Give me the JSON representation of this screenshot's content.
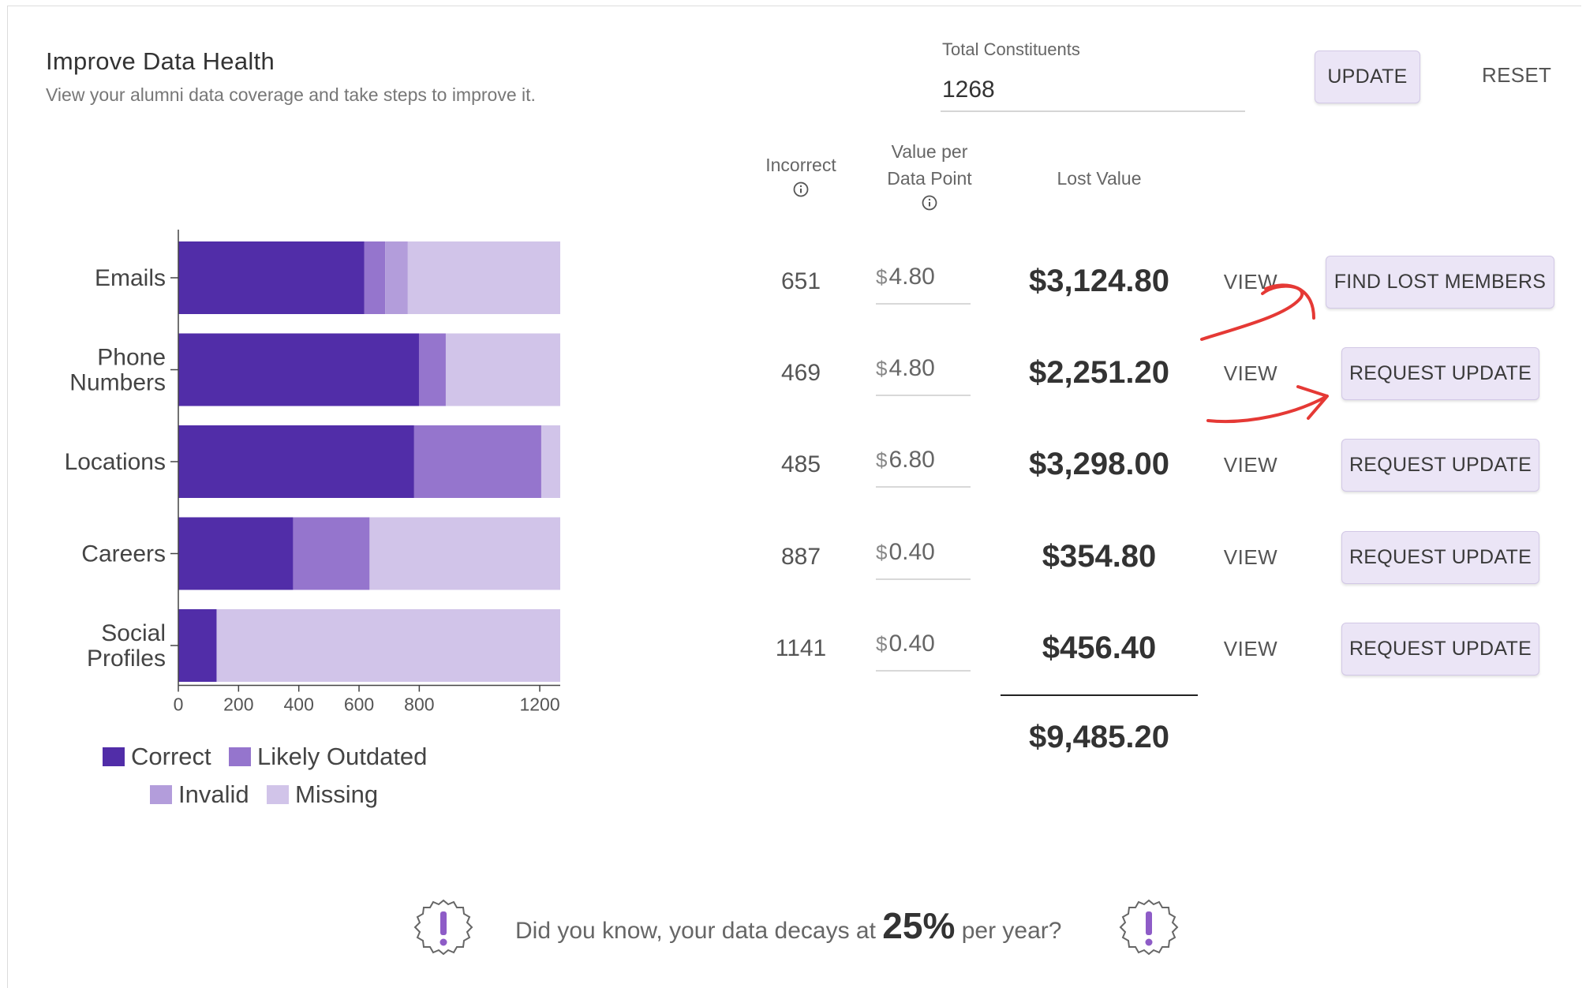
{
  "header": {
    "title": "Improve Data Health",
    "subtitle": "View your alumni data coverage and take steps to improve it."
  },
  "constituents": {
    "label": "Total Constituents",
    "value": "1268",
    "update_label": "UPDATE",
    "reset_label": "RESET"
  },
  "columns": {
    "incorrect": "Incorrect",
    "value_per_line1": "Value per",
    "value_per_line2": "Data Point",
    "lost_value": "Lost Value"
  },
  "rows": [
    {
      "incorrect": "651",
      "currency": "$",
      "value": "4.80",
      "lost": "$3,124.80",
      "view": "VIEW",
      "action": "FIND LOST MEMBERS"
    },
    {
      "incorrect": "469",
      "currency": "$",
      "value": "4.80",
      "lost": "$2,251.20",
      "view": "VIEW",
      "action": "REQUEST UPDATE"
    },
    {
      "incorrect": "485",
      "currency": "$",
      "value": "6.80",
      "lost": "$3,298.00",
      "view": "VIEW",
      "action": "REQUEST UPDATE"
    },
    {
      "incorrect": "887",
      "currency": "$",
      "value": "0.40",
      "lost": "$354.80",
      "view": "VIEW",
      "action": "REQUEST UPDATE"
    },
    {
      "incorrect": "1141",
      "currency": "$",
      "value": "0.40",
      "lost": "$456.40",
      "view": "VIEW",
      "action": "REQUEST UPDATE"
    }
  ],
  "total": "$9,485.20",
  "fact": {
    "prefix": "Did you know, your data decays at",
    "percent": "25%",
    "suffix": "per year?"
  },
  "colors": {
    "correct": "#512da8",
    "likely_outdated": "#9575cd",
    "invalid": "#b39ddb",
    "missing": "#d1c4e9",
    "annotation": "#e53935"
  },
  "chart_data": {
    "type": "bar",
    "orientation": "horizontal",
    "stacked": true,
    "categories": [
      [
        "Emails"
      ],
      [
        "Phone",
        "Numbers"
      ],
      [
        "Locations"
      ],
      [
        "Careers"
      ],
      [
        "Social",
        "Profiles"
      ]
    ],
    "series": [
      {
        "name": "Correct",
        "color": "#512da8",
        "values": [
          617,
          799,
          783,
          381,
          127
        ]
      },
      {
        "name": "Likely Outdated",
        "color": "#9575cd",
        "values": [
          70,
          89,
          422,
          254,
          0
        ]
      },
      {
        "name": "Invalid",
        "color": "#b39ddb",
        "values": [
          75,
          0,
          0,
          0,
          0
        ]
      },
      {
        "name": "Missing",
        "color": "#d1c4e9",
        "values": [
          506,
          380,
          63,
          633,
          1141
        ]
      }
    ],
    "xlim": [
      0,
      1268
    ],
    "xticks": [
      0,
      200,
      400,
      600,
      800,
      1200
    ],
    "legend_position": "bottom"
  }
}
